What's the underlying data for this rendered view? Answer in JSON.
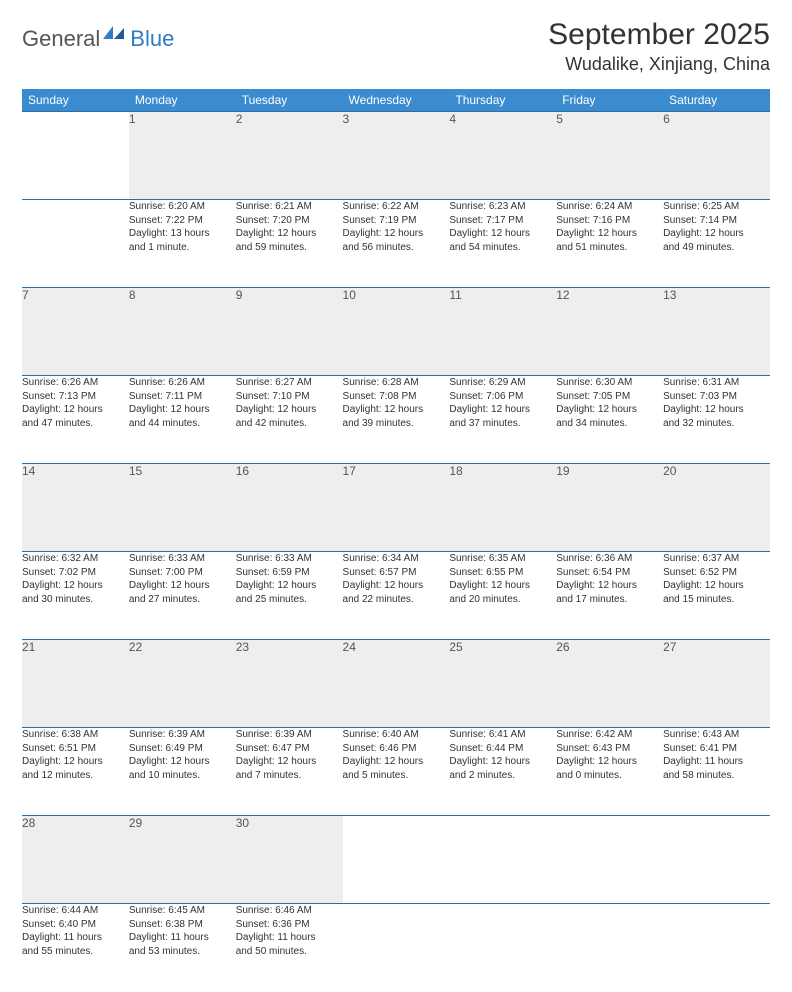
{
  "logo": {
    "general": "General",
    "blue": "Blue"
  },
  "title": "September 2025",
  "location": "Wudalike, Xinjiang, China",
  "colors": {
    "header_bg": "#3b8bd0",
    "header_text": "#ffffff",
    "rule": "#2e6da4",
    "daynum_bg": "#eeeeee",
    "logo_blue": "#2f7bc4"
  },
  "weekdays": [
    "Sunday",
    "Monday",
    "Tuesday",
    "Wednesday",
    "Thursday",
    "Friday",
    "Saturday"
  ],
  "weeks": [
    [
      null,
      {
        "n": "1",
        "sr": "Sunrise: 6:20 AM",
        "ss": "Sunset: 7:22 PM",
        "dl1": "Daylight: 13 hours",
        "dl2": "and 1 minute."
      },
      {
        "n": "2",
        "sr": "Sunrise: 6:21 AM",
        "ss": "Sunset: 7:20 PM",
        "dl1": "Daylight: 12 hours",
        "dl2": "and 59 minutes."
      },
      {
        "n": "3",
        "sr": "Sunrise: 6:22 AM",
        "ss": "Sunset: 7:19 PM",
        "dl1": "Daylight: 12 hours",
        "dl2": "and 56 minutes."
      },
      {
        "n": "4",
        "sr": "Sunrise: 6:23 AM",
        "ss": "Sunset: 7:17 PM",
        "dl1": "Daylight: 12 hours",
        "dl2": "and 54 minutes."
      },
      {
        "n": "5",
        "sr": "Sunrise: 6:24 AM",
        "ss": "Sunset: 7:16 PM",
        "dl1": "Daylight: 12 hours",
        "dl2": "and 51 minutes."
      },
      {
        "n": "6",
        "sr": "Sunrise: 6:25 AM",
        "ss": "Sunset: 7:14 PM",
        "dl1": "Daylight: 12 hours",
        "dl2": "and 49 minutes."
      }
    ],
    [
      {
        "n": "7",
        "sr": "Sunrise: 6:26 AM",
        "ss": "Sunset: 7:13 PM",
        "dl1": "Daylight: 12 hours",
        "dl2": "and 47 minutes."
      },
      {
        "n": "8",
        "sr": "Sunrise: 6:26 AM",
        "ss": "Sunset: 7:11 PM",
        "dl1": "Daylight: 12 hours",
        "dl2": "and 44 minutes."
      },
      {
        "n": "9",
        "sr": "Sunrise: 6:27 AM",
        "ss": "Sunset: 7:10 PM",
        "dl1": "Daylight: 12 hours",
        "dl2": "and 42 minutes."
      },
      {
        "n": "10",
        "sr": "Sunrise: 6:28 AM",
        "ss": "Sunset: 7:08 PM",
        "dl1": "Daylight: 12 hours",
        "dl2": "and 39 minutes."
      },
      {
        "n": "11",
        "sr": "Sunrise: 6:29 AM",
        "ss": "Sunset: 7:06 PM",
        "dl1": "Daylight: 12 hours",
        "dl2": "and 37 minutes."
      },
      {
        "n": "12",
        "sr": "Sunrise: 6:30 AM",
        "ss": "Sunset: 7:05 PM",
        "dl1": "Daylight: 12 hours",
        "dl2": "and 34 minutes."
      },
      {
        "n": "13",
        "sr": "Sunrise: 6:31 AM",
        "ss": "Sunset: 7:03 PM",
        "dl1": "Daylight: 12 hours",
        "dl2": "and 32 minutes."
      }
    ],
    [
      {
        "n": "14",
        "sr": "Sunrise: 6:32 AM",
        "ss": "Sunset: 7:02 PM",
        "dl1": "Daylight: 12 hours",
        "dl2": "and 30 minutes."
      },
      {
        "n": "15",
        "sr": "Sunrise: 6:33 AM",
        "ss": "Sunset: 7:00 PM",
        "dl1": "Daylight: 12 hours",
        "dl2": "and 27 minutes."
      },
      {
        "n": "16",
        "sr": "Sunrise: 6:33 AM",
        "ss": "Sunset: 6:59 PM",
        "dl1": "Daylight: 12 hours",
        "dl2": "and 25 minutes."
      },
      {
        "n": "17",
        "sr": "Sunrise: 6:34 AM",
        "ss": "Sunset: 6:57 PM",
        "dl1": "Daylight: 12 hours",
        "dl2": "and 22 minutes."
      },
      {
        "n": "18",
        "sr": "Sunrise: 6:35 AM",
        "ss": "Sunset: 6:55 PM",
        "dl1": "Daylight: 12 hours",
        "dl2": "and 20 minutes."
      },
      {
        "n": "19",
        "sr": "Sunrise: 6:36 AM",
        "ss": "Sunset: 6:54 PM",
        "dl1": "Daylight: 12 hours",
        "dl2": "and 17 minutes."
      },
      {
        "n": "20",
        "sr": "Sunrise: 6:37 AM",
        "ss": "Sunset: 6:52 PM",
        "dl1": "Daylight: 12 hours",
        "dl2": "and 15 minutes."
      }
    ],
    [
      {
        "n": "21",
        "sr": "Sunrise: 6:38 AM",
        "ss": "Sunset: 6:51 PM",
        "dl1": "Daylight: 12 hours",
        "dl2": "and 12 minutes."
      },
      {
        "n": "22",
        "sr": "Sunrise: 6:39 AM",
        "ss": "Sunset: 6:49 PM",
        "dl1": "Daylight: 12 hours",
        "dl2": "and 10 minutes."
      },
      {
        "n": "23",
        "sr": "Sunrise: 6:39 AM",
        "ss": "Sunset: 6:47 PM",
        "dl1": "Daylight: 12 hours",
        "dl2": "and 7 minutes."
      },
      {
        "n": "24",
        "sr": "Sunrise: 6:40 AM",
        "ss": "Sunset: 6:46 PM",
        "dl1": "Daylight: 12 hours",
        "dl2": "and 5 minutes."
      },
      {
        "n": "25",
        "sr": "Sunrise: 6:41 AM",
        "ss": "Sunset: 6:44 PM",
        "dl1": "Daylight: 12 hours",
        "dl2": "and 2 minutes."
      },
      {
        "n": "26",
        "sr": "Sunrise: 6:42 AM",
        "ss": "Sunset: 6:43 PM",
        "dl1": "Daylight: 12 hours",
        "dl2": "and 0 minutes."
      },
      {
        "n": "27",
        "sr": "Sunrise: 6:43 AM",
        "ss": "Sunset: 6:41 PM",
        "dl1": "Daylight: 11 hours",
        "dl2": "and 58 minutes."
      }
    ],
    [
      {
        "n": "28",
        "sr": "Sunrise: 6:44 AM",
        "ss": "Sunset: 6:40 PM",
        "dl1": "Daylight: 11 hours",
        "dl2": "and 55 minutes."
      },
      {
        "n": "29",
        "sr": "Sunrise: 6:45 AM",
        "ss": "Sunset: 6:38 PM",
        "dl1": "Daylight: 11 hours",
        "dl2": "and 53 minutes."
      },
      {
        "n": "30",
        "sr": "Sunrise: 6:46 AM",
        "ss": "Sunset: 6:36 PM",
        "dl1": "Daylight: 11 hours",
        "dl2": "and 50 minutes."
      },
      null,
      null,
      null,
      null
    ]
  ]
}
